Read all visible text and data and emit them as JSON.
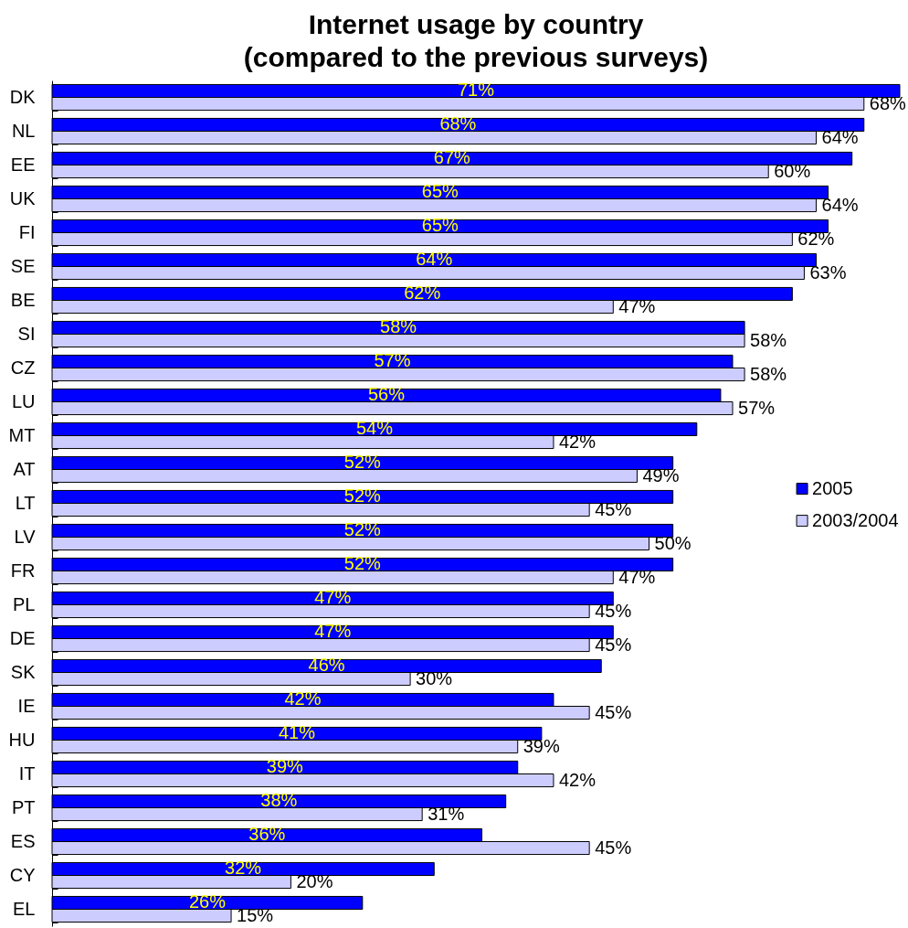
{
  "chart_data": {
    "type": "bar",
    "orientation": "horizontal",
    "title": "Internet usage by country",
    "subtitle": "(compared to the previous surveys)",
    "categories": [
      "DK",
      "NL",
      "EE",
      "UK",
      "FI",
      "SE",
      "BE",
      "SI",
      "CZ",
      "LU",
      "MT",
      "AT",
      "LT",
      "LV",
      "FR",
      "PL",
      "DE",
      "SK",
      "IE",
      "HU",
      "IT",
      "PT",
      "ES",
      "CY",
      "EL"
    ],
    "series": [
      {
        "name": "2005",
        "color": "#0000ff",
        "values": [
          71,
          68,
          67,
          65,
          65,
          64,
          62,
          58,
          57,
          56,
          54,
          52,
          52,
          52,
          52,
          47,
          47,
          46,
          42,
          41,
          39,
          38,
          36,
          32,
          26
        ],
        "value_labels": [
          "71%",
          "68%",
          "67%",
          "65%",
          "65%",
          "64%",
          "62%",
          "58%",
          "57%",
          "56%",
          "54%",
          "52%",
          "52%",
          "52%",
          "52%",
          "47%",
          "47%",
          "46%",
          "42%",
          "41%",
          "39%",
          "38%",
          "36%",
          "32%",
          "26%"
        ]
      },
      {
        "name": "2003/2004",
        "color": "#ccccff",
        "values": [
          68,
          64,
          60,
          64,
          62,
          63,
          47,
          58,
          58,
          57,
          42,
          49,
          45,
          50,
          47,
          45,
          45,
          30,
          45,
          39,
          42,
          31,
          45,
          20,
          15
        ],
        "value_labels": [
          "68%",
          "64%",
          "60%",
          "64%",
          "62%",
          "63%",
          "47%",
          "58%",
          "58%",
          "57%",
          "42%",
          "49%",
          "45%",
          "50%",
          "47%",
          "45%",
          "45%",
          "30%",
          "45%",
          "39%",
          "42%",
          "31%",
          "45%",
          "20%",
          "15%"
        ]
      }
    ],
    "legend": "right"
  }
}
